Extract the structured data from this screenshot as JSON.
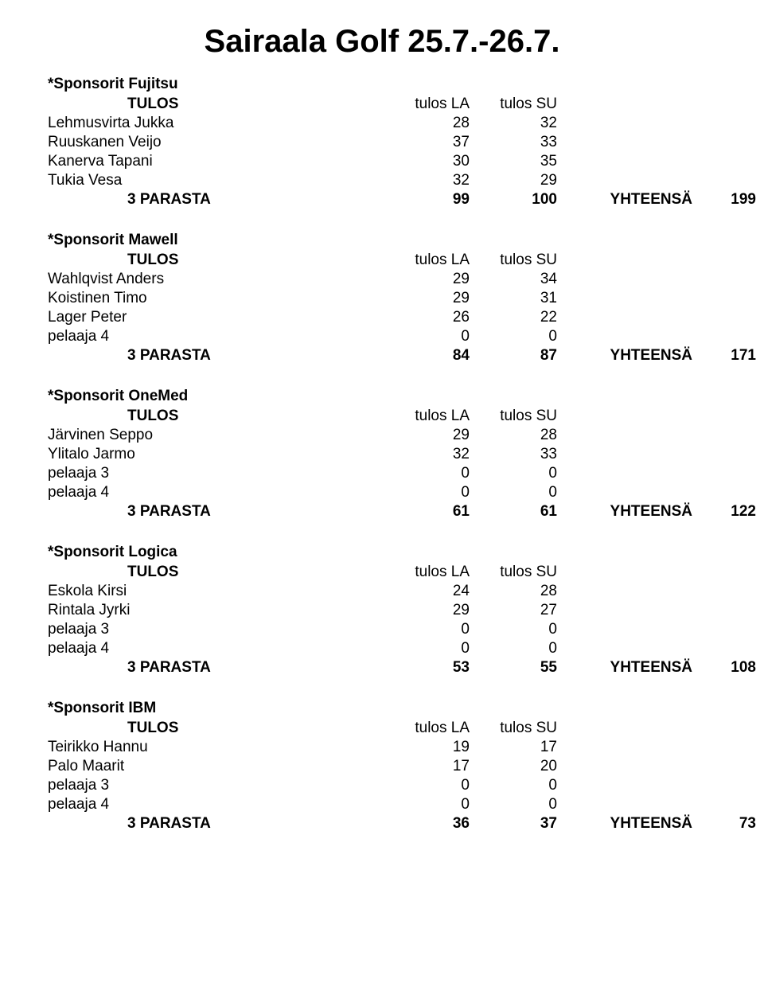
{
  "title": "Sairaala Golf 25.7.-26.7.",
  "labels": {
    "tulos": "TULOS",
    "tulos_la": "tulos LA",
    "tulos_su": "tulos SU",
    "parasta": "3 PARASTA",
    "yhteensa": "YHTEENSÄ"
  },
  "groups": [
    {
      "sponsor": "*Sponsorit Fujitsu",
      "rows": [
        {
          "name": "Lehmusvirta Jukka",
          "la": 28,
          "su": 32
        },
        {
          "name": "Ruuskanen Veijo",
          "la": 37,
          "su": 33
        },
        {
          "name": "Kanerva Tapani",
          "la": 30,
          "su": 35
        },
        {
          "name": "Tukia Vesa",
          "la": 32,
          "su": 29
        }
      ],
      "total": {
        "la": 99,
        "su": 100,
        "yht": 199
      }
    },
    {
      "sponsor": "*Sponsorit Mawell",
      "rows": [
        {
          "name": "Wahlqvist Anders",
          "la": 29,
          "su": 34
        },
        {
          "name": "Koistinen Timo",
          "la": 29,
          "su": 31
        },
        {
          "name": "Lager Peter",
          "la": 26,
          "su": 22
        },
        {
          "name": "pelaaja 4",
          "la": 0,
          "su": 0
        }
      ],
      "total": {
        "la": 84,
        "su": 87,
        "yht": 171
      }
    },
    {
      "sponsor": "*Sponsorit OneMed",
      "rows": [
        {
          "name": "Järvinen Seppo",
          "la": 29,
          "su": 28
        },
        {
          "name": "Ylitalo Jarmo",
          "la": 32,
          "su": 33
        },
        {
          "name": "pelaaja 3",
          "la": 0,
          "su": 0
        },
        {
          "name": "pelaaja 4",
          "la": 0,
          "su": 0
        }
      ],
      "total": {
        "la": 61,
        "su": 61,
        "yht": 122
      }
    },
    {
      "sponsor": "*Sponsorit Logica",
      "rows": [
        {
          "name": "Eskola Kirsi",
          "la": 24,
          "su": 28
        },
        {
          "name": "Rintala Jyrki",
          "la": 29,
          "su": 27
        },
        {
          "name": "pelaaja 3",
          "la": 0,
          "su": 0
        },
        {
          "name": "pelaaja 4",
          "la": 0,
          "su": 0
        }
      ],
      "total": {
        "la": 53,
        "su": 55,
        "yht": 108
      }
    },
    {
      "sponsor": "*Sponsorit IBM",
      "rows": [
        {
          "name": "Teirikko Hannu",
          "la": 19,
          "su": 17
        },
        {
          "name": "Palo Maarit",
          "la": 17,
          "su": 20
        },
        {
          "name": "pelaaja 3",
          "la": 0,
          "su": 0
        },
        {
          "name": "pelaaja 4",
          "la": 0,
          "su": 0
        }
      ],
      "total": {
        "la": 36,
        "su": 37,
        "yht": 73
      }
    }
  ]
}
